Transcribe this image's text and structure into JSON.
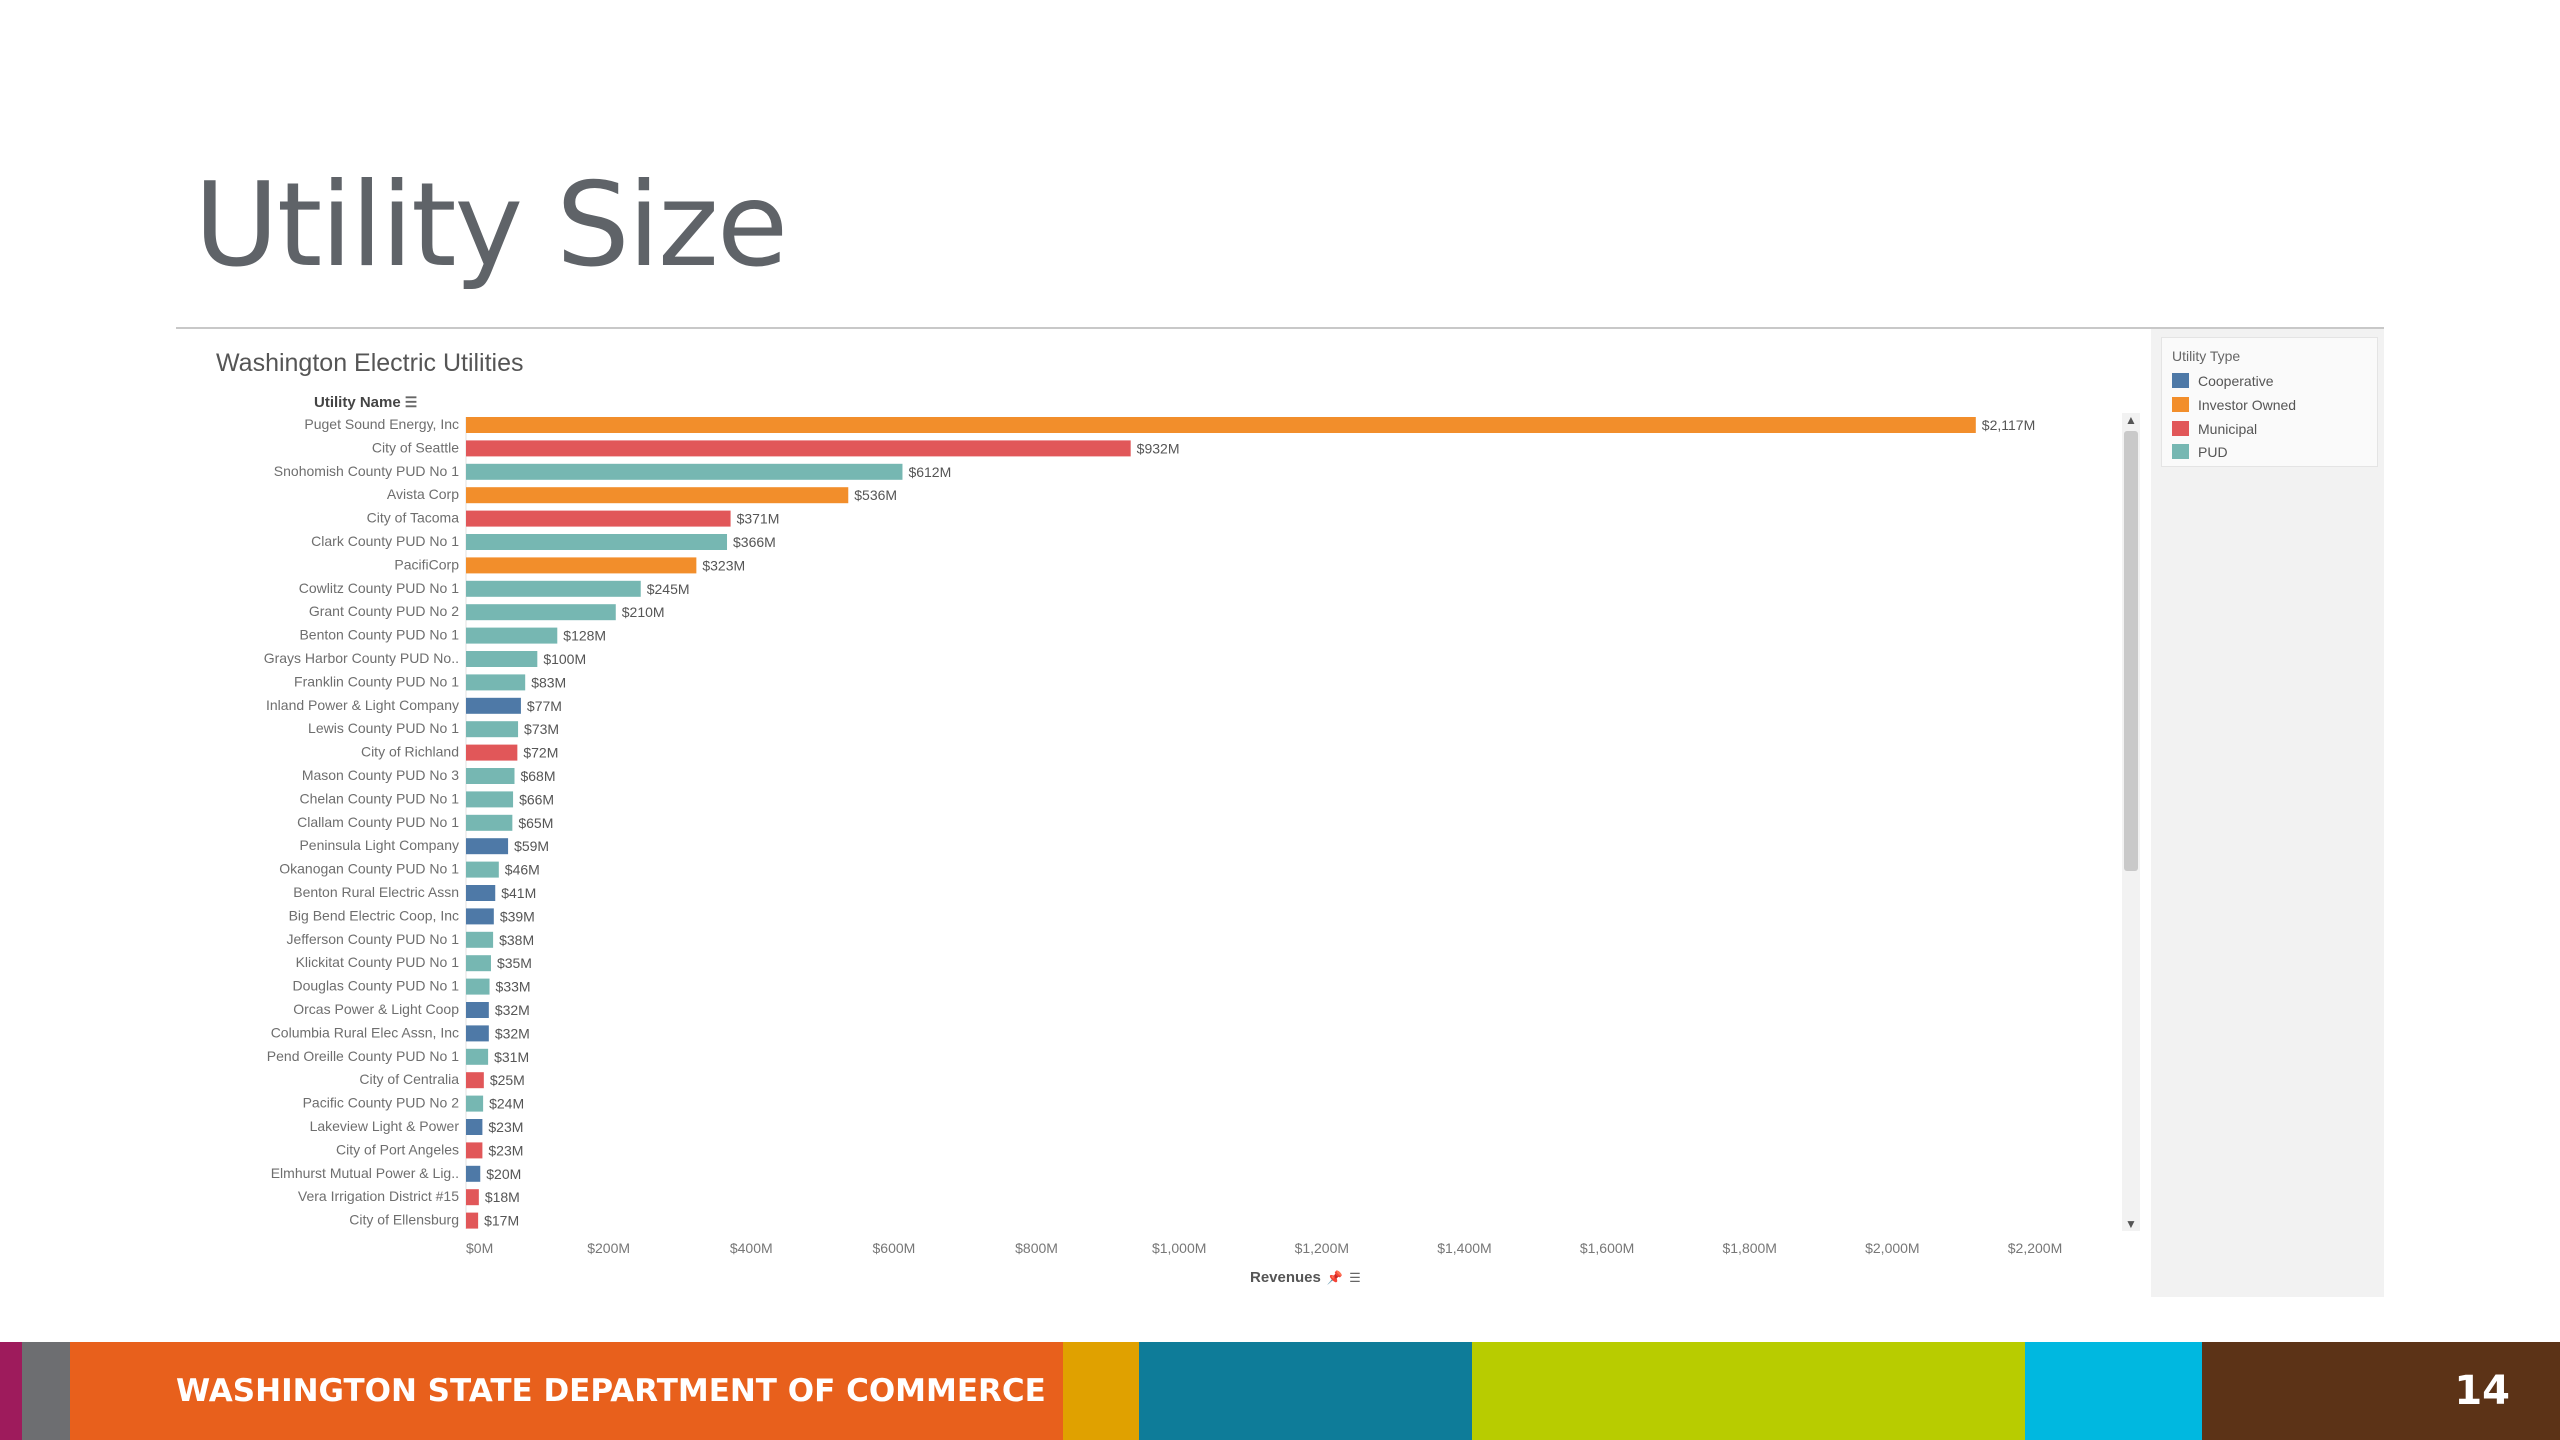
{
  "slide": {
    "title": "Utility Size",
    "footer_text": "WASHINGTON STATE DEPARTMENT OF COMMERCE",
    "page_number": "14",
    "footer_colors": [
      "#9e1b5c",
      "#6d6e71",
      "#e8601c",
      "#e0a100",
      "#0e7c99",
      "#b8cc00",
      "#00b8e0",
      "#5c3317"
    ]
  },
  "viz": {
    "field_header": "Utility Name",
    "axis_title": "Revenues",
    "scroll_up_icon": "chevron-up-icon",
    "scroll_down_icon": "chevron-down-icon"
  },
  "legend": {
    "title": "Utility Type",
    "items": [
      {
        "label": "Cooperative",
        "color": "#4e79a7"
      },
      {
        "label": "Investor Owned",
        "color": "#f28e2b"
      },
      {
        "label": "Municipal",
        "color": "#e15759"
      },
      {
        "label": "PUD",
        "color": "#76b7b2"
      }
    ]
  },
  "chart_data": {
    "type": "bar",
    "orientation": "horizontal",
    "title": "Washington Electric Utilities",
    "xlabel": "Revenues",
    "ylabel": "Utility Name",
    "unit": "$M",
    "xlim": [
      0,
      2200
    ],
    "x_ticks": [
      "$0M",
      "$200M",
      "$400M",
      "$600M",
      "$800M",
      "$1,000M",
      "$1,200M",
      "$1,400M",
      "$1,600M",
      "$1,800M",
      "$2,000M",
      "$2,200M"
    ],
    "legend_title": "Utility Type",
    "legend_position": "right",
    "bars": [
      {
        "name": "Puget Sound Energy, Inc",
        "value": 2117,
        "label": "$2,117M",
        "type": "Investor Owned"
      },
      {
        "name": "City of Seattle",
        "value": 932,
        "label": "$932M",
        "type": "Municipal"
      },
      {
        "name": "Snohomish County PUD No 1",
        "value": 612,
        "label": "$612M",
        "type": "PUD"
      },
      {
        "name": "Avista Corp",
        "value": 536,
        "label": "$536M",
        "type": "Investor Owned"
      },
      {
        "name": "City of Tacoma",
        "value": 371,
        "label": "$371M",
        "type": "Municipal"
      },
      {
        "name": "Clark County PUD No 1",
        "value": 366,
        "label": "$366M",
        "type": "PUD"
      },
      {
        "name": "PacifiCorp",
        "value": 323,
        "label": "$323M",
        "type": "Investor Owned"
      },
      {
        "name": "Cowlitz County PUD No 1",
        "value": 245,
        "label": "$245M",
        "type": "PUD"
      },
      {
        "name": "Grant County PUD No 2",
        "value": 210,
        "label": "$210M",
        "type": "PUD"
      },
      {
        "name": "Benton County PUD No 1",
        "value": 128,
        "label": "$128M",
        "type": "PUD"
      },
      {
        "name": "Grays Harbor County PUD No..",
        "value": 100,
        "label": "$100M",
        "type": "PUD"
      },
      {
        "name": "Franklin County PUD No 1",
        "value": 83,
        "label": "$83M",
        "type": "PUD"
      },
      {
        "name": "Inland Power & Light Company",
        "value": 77,
        "label": "$77M",
        "type": "Cooperative"
      },
      {
        "name": "Lewis County PUD No 1",
        "value": 73,
        "label": "$73M",
        "type": "PUD"
      },
      {
        "name": "City of Richland",
        "value": 72,
        "label": "$72M",
        "type": "Municipal"
      },
      {
        "name": "Mason County PUD No 3",
        "value": 68,
        "label": "$68M",
        "type": "PUD"
      },
      {
        "name": "Chelan County PUD No 1",
        "value": 66,
        "label": "$66M",
        "type": "PUD"
      },
      {
        "name": "Clallam County PUD No 1",
        "value": 65,
        "label": "$65M",
        "type": "PUD"
      },
      {
        "name": "Peninsula Light Company",
        "value": 59,
        "label": "$59M",
        "type": "Cooperative"
      },
      {
        "name": "Okanogan County PUD No 1",
        "value": 46,
        "label": "$46M",
        "type": "PUD"
      },
      {
        "name": "Benton Rural Electric Assn",
        "value": 41,
        "label": "$41M",
        "type": "Cooperative"
      },
      {
        "name": "Big Bend Electric Coop, Inc",
        "value": 39,
        "label": "$39M",
        "type": "Cooperative"
      },
      {
        "name": "Jefferson County PUD No 1",
        "value": 38,
        "label": "$38M",
        "type": "PUD"
      },
      {
        "name": "Klickitat County PUD No 1",
        "value": 35,
        "label": "$35M",
        "type": "PUD"
      },
      {
        "name": "Douglas County PUD No 1",
        "value": 33,
        "label": "$33M",
        "type": "PUD"
      },
      {
        "name": "Orcas Power & Light Coop",
        "value": 32,
        "label": "$32M",
        "type": "Cooperative"
      },
      {
        "name": "Columbia Rural Elec Assn, Inc",
        "value": 32,
        "label": "$32M",
        "type": "Cooperative"
      },
      {
        "name": "Pend Oreille County PUD No 1",
        "value": 31,
        "label": "$31M",
        "type": "PUD"
      },
      {
        "name": "City of Centralia",
        "value": 25,
        "label": "$25M",
        "type": "Municipal"
      },
      {
        "name": "Pacific County PUD No 2",
        "value": 24,
        "label": "$24M",
        "type": "PUD"
      },
      {
        "name": "Lakeview Light & Power",
        "value": 23,
        "label": "$23M",
        "type": "Cooperative"
      },
      {
        "name": "City of Port Angeles",
        "value": 23,
        "label": "$23M",
        "type": "Municipal"
      },
      {
        "name": "Elmhurst Mutual Power & Lig..",
        "value": 20,
        "label": "$20M",
        "type": "Cooperative"
      },
      {
        "name": "Vera Irrigation District #15",
        "value": 18,
        "label": "$18M",
        "type": "Municipal"
      },
      {
        "name": "City of Ellensburg",
        "value": 17,
        "label": "$17M",
        "type": "Municipal"
      }
    ]
  }
}
